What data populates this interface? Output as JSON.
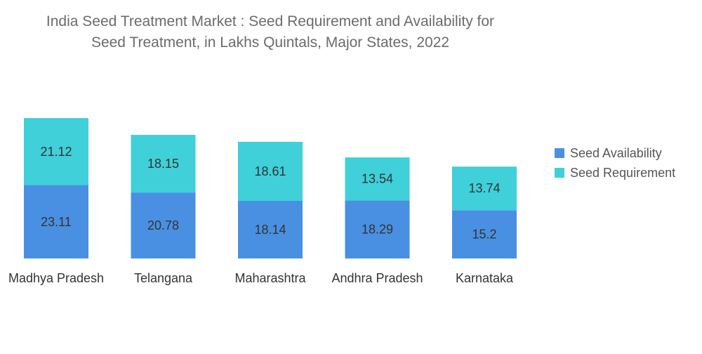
{
  "chart_data": {
    "type": "bar",
    "stacked": true,
    "title": "India Seed Treatment Market : Seed Requirement and Availability for Seed Treatment, in Lakhs Quintals, Major States, 2022",
    "title_lines": [
      "India Seed Treatment Market : Seed Requirement and Availability for",
      "Seed Treatment, in Lakhs Quintals, Major States, 2022"
    ],
    "categories": [
      "Madhya Pradesh",
      "Telangana",
      "Maharashtra",
      "Andhra Pradesh",
      "Karnataka"
    ],
    "series": [
      {
        "name": "Seed Availability",
        "values": [
          23.11,
          20.78,
          18.14,
          18.29,
          15.2
        ],
        "labels": [
          "23.11",
          "20.78",
          "18.14",
          "18.29",
          "15.2"
        ],
        "color": "#4a90e2"
      },
      {
        "name": "Seed Requirement",
        "values": [
          21.12,
          18.15,
          18.61,
          13.54,
          13.74
        ],
        "labels": [
          "21.12",
          "18.15",
          "18.61",
          "13.54",
          "13.74"
        ],
        "color": "#3fd0d9"
      }
    ],
    "xlabel": "",
    "ylabel": "",
    "grid": false,
    "legend": "right"
  }
}
